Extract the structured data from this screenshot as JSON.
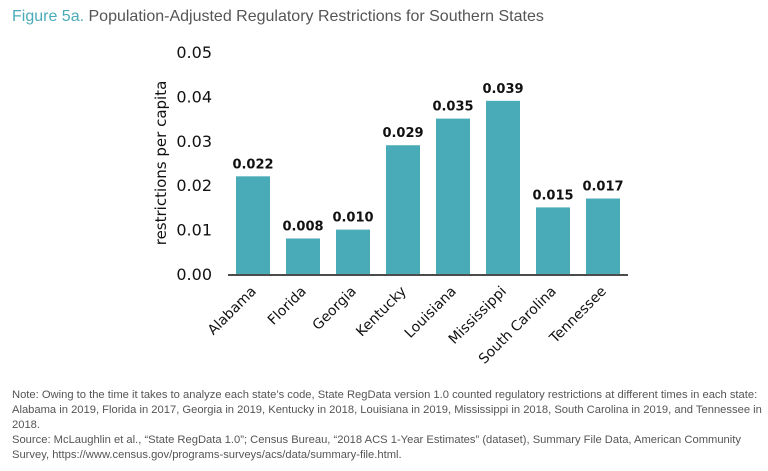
{
  "title": {
    "figure": "Figure 5a.",
    "text": "Population-Adjusted Regulatory Restrictions for Southern States"
  },
  "chart_data": {
    "type": "bar",
    "title": "Population-Adjusted Regulatory Restrictions for Southern States",
    "categories": [
      "Alabama",
      "Florida",
      "Georgia",
      "Kentucky",
      "Louisiana",
      "Mississippi",
      "South Carolina",
      "Tennessee"
    ],
    "values": [
      0.022,
      0.008,
      0.01,
      0.029,
      0.035,
      0.039,
      0.015,
      0.017
    ],
    "data_labels": [
      "0.022",
      "0.008",
      "0.010",
      "0.029",
      "0.035",
      "0.039",
      "0.015",
      "0.017"
    ],
    "ylabel": "restrictions per capita",
    "xlabel": "",
    "ylim": [
      0,
      0.05
    ],
    "yticks": [
      "0.00",
      "0.01",
      "0.02",
      "0.03",
      "0.04",
      "0.05"
    ],
    "grid": false,
    "bar_color": "#4aabb8"
  },
  "notes": {
    "note": "Note: Owing to the time it takes to analyze each state’s code, State RegData version 1.0 counted regulatory restrictions at different times in each state: Alabama in 2019, Florida in 2017, Georgia in 2019, Kentucky in 2018, Louisiana in 2019, Mississippi in 2018, South Carolina in 2019, and Tennessee in 2018.",
    "source": "Source: McLaughlin et al., “State RegData 1.0”; Census Bureau, “2018 ACS 1-Year Estimates” (dataset), Summary File Data, American Community Survey, https://www.census.gov/programs-surveys/acs/data/summary-file.html."
  }
}
